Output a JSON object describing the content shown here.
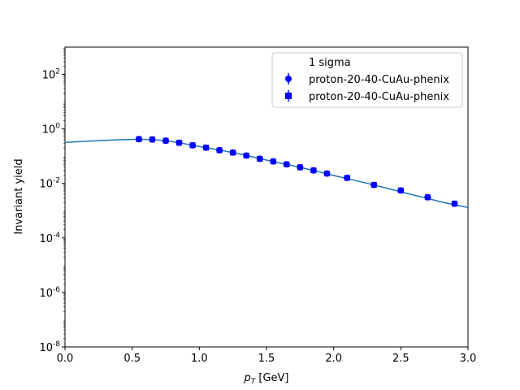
{
  "chart_data": {
    "type": "scatter",
    "title": "",
    "xlabel": "p_T [GeV]",
    "xlabel_main": "p",
    "xlabel_sub": "T",
    "xlabel_unit": " [GeV]",
    "ylabel": "Invariant yield",
    "xlim": [
      0.0,
      3.0
    ],
    "ylim": [
      1e-08,
      1000
    ],
    "yscale": "log",
    "grid": false,
    "legend_position": "top-right",
    "legend_title": "1 sigma",
    "x_ticks": [
      "0.0",
      "0.5",
      "1.0",
      "1.5",
      "2.0",
      "2.5",
      "3.0"
    ],
    "x_tick_values": [
      0.0,
      0.5,
      1.0,
      1.5,
      2.0,
      2.5,
      3.0
    ],
    "y_tick_exponents": [
      -8,
      -6,
      -4,
      -2,
      0,
      2
    ],
    "y_tick_base": "10",
    "y_tick_labels": [
      "-8",
      "-6",
      "-4",
      "-2",
      "0",
      "2"
    ],
    "series": [
      {
        "name": "proton-20-40-CuAu-phenix",
        "marker": "circle",
        "color": "#0000ff",
        "x": [
          0.55,
          0.65,
          0.75,
          0.85,
          0.95,
          1.05,
          1.15,
          1.25,
          1.35,
          1.45,
          1.55,
          1.65,
          1.75,
          1.85,
          1.95,
          2.1,
          2.3,
          2.5,
          2.7,
          2.9
        ],
        "y": [
          0.42,
          0.41,
          0.37,
          0.31,
          0.25,
          0.205,
          0.165,
          0.135,
          0.105,
          0.08,
          0.064,
          0.05,
          0.039,
          0.03,
          0.023,
          0.016,
          0.0088,
          0.0055,
          0.0031,
          0.0018
        ]
      },
      {
        "name": "proton-20-40-CuAu-phenix",
        "marker": "square",
        "color": "#0000ff",
        "x": [
          0.55,
          0.65,
          0.75,
          0.85,
          0.95,
          1.05,
          1.15,
          1.25,
          1.35,
          1.45,
          1.55,
          1.65,
          1.75,
          1.85,
          1.95,
          2.1,
          2.3,
          2.5,
          2.7,
          2.9
        ],
        "y": [
          0.42,
          0.41,
          0.37,
          0.31,
          0.25,
          0.205,
          0.165,
          0.135,
          0.105,
          0.08,
          0.064,
          0.05,
          0.039,
          0.03,
          0.023,
          0.016,
          0.0088,
          0.0055,
          0.0031,
          0.0018
        ]
      }
    ],
    "fit_line": {
      "color": "#1f77b4",
      "x": [
        0.0,
        0.1,
        0.2,
        0.3,
        0.4,
        0.5,
        0.6,
        0.7,
        0.8,
        0.9,
        1.0,
        1.1,
        1.2,
        1.3,
        1.4,
        1.5,
        1.6,
        1.7,
        1.8,
        1.9,
        2.0,
        2.1,
        2.2,
        2.3,
        2.4,
        2.5,
        2.6,
        2.7,
        2.8,
        2.9,
        3.0
      ],
      "y": [
        0.32,
        0.34,
        0.36,
        0.38,
        0.4,
        0.41,
        0.41,
        0.39,
        0.34,
        0.28,
        0.225,
        0.185,
        0.15,
        0.12,
        0.093,
        0.072,
        0.056,
        0.044,
        0.034,
        0.026,
        0.0195,
        0.015,
        0.0115,
        0.0088,
        0.0066,
        0.0049,
        0.0037,
        0.0028,
        0.0021,
        0.00165,
        0.0013
      ]
    }
  }
}
